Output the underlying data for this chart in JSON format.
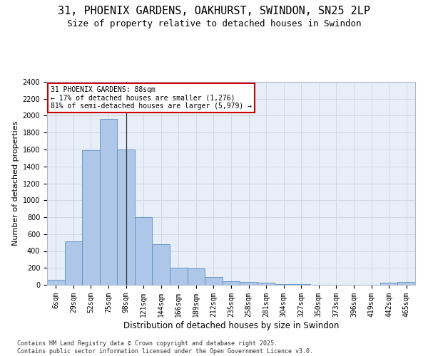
{
  "title": "31, PHOENIX GARDENS, OAKHURST, SWINDON, SN25 2LP",
  "subtitle": "Size of property relative to detached houses in Swindon",
  "xlabel": "Distribution of detached houses by size in Swindon",
  "ylabel": "Number of detached properties",
  "bar_labels": [
    "6sqm",
    "29sqm",
    "52sqm",
    "75sqm",
    "98sqm",
    "121sqm",
    "144sqm",
    "166sqm",
    "189sqm",
    "212sqm",
    "235sqm",
    "258sqm",
    "281sqm",
    "304sqm",
    "327sqm",
    "350sqm",
    "373sqm",
    "396sqm",
    "419sqm",
    "442sqm",
    "465sqm"
  ],
  "bar_values": [
    60,
    510,
    1590,
    1960,
    1600,
    800,
    480,
    200,
    195,
    90,
    45,
    35,
    25,
    12,
    10,
    0,
    0,
    0,
    0,
    25,
    30
  ],
  "bar_color": "#aec6e8",
  "bar_edge_color": "#5a8fc0",
  "highlight_bar_index": 4,
  "highlight_line_color": "#333333",
  "ylim": [
    0,
    2400
  ],
  "yticks": [
    0,
    200,
    400,
    600,
    800,
    1000,
    1200,
    1400,
    1600,
    1800,
    2000,
    2200,
    2400
  ],
  "annotation_text": "31 PHOENIX GARDENS: 88sqm\n← 17% of detached houses are smaller (1,276)\n81% of semi-detached houses are larger (5,979) →",
  "annotation_box_color": "#ffffff",
  "annotation_box_edge": "#cc0000",
  "grid_color": "#d0d8e8",
  "background_color": "#e8eef8",
  "footer_text": "Contains HM Land Registry data © Crown copyright and database right 2025.\nContains public sector information licensed under the Open Government Licence v3.0.",
  "title_fontsize": 11,
  "subtitle_fontsize": 9,
  "ylabel_fontsize": 8,
  "xlabel_fontsize": 8.5,
  "footer_fontsize": 6,
  "tick_fontsize": 7,
  "annot_fontsize": 7
}
